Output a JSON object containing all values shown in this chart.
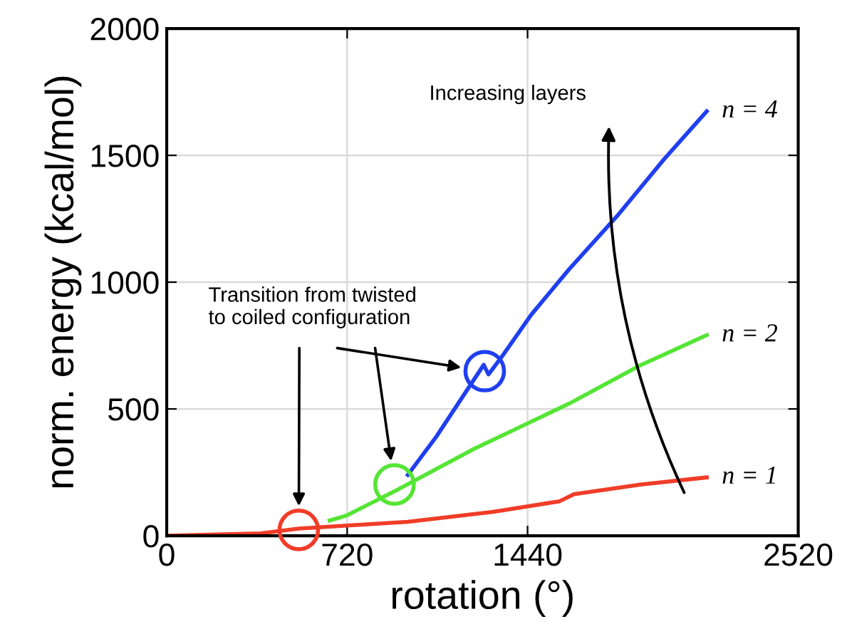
{
  "chart_data": {
    "type": "line",
    "xlabel": "rotation (°)",
    "ylabel": "norm. energy (kcal/mol)",
    "xlim": [
      0,
      2520
    ],
    "xticks": [
      0,
      720,
      1440,
      2520
    ],
    "ylim": [
      0,
      2000
    ],
    "yticks": [
      0,
      500,
      1000,
      1500,
      2000
    ],
    "grid": true,
    "marker": "none",
    "line_style": "solid",
    "series": [
      {
        "name": "n = 1",
        "color": "#f03c28",
        "x": [
          0,
          375,
          527,
          754,
          962,
          1303,
          1568,
          1625,
          1890,
          2155
        ],
        "values": [
          0,
          9,
          28,
          42,
          55,
          94,
          136,
          164,
          202,
          230
        ]
      },
      {
        "name": "n = 4",
        "color": "#1f3ff0",
        "x": [
          962,
          1076,
          1227,
          1265,
          1284,
          1341,
          1455,
          1606,
          1795,
          1985,
          2155
        ],
        "values": [
          240,
          391,
          617,
          674,
          636,
          711,
          872,
          1051,
          1258,
          1485,
          1674
        ]
      },
      {
        "name": "n = 2",
        "color": "#55e535",
        "x": [
          650,
          716,
          924,
          1227,
          1606,
          1890,
          2155
        ],
        "values": [
          60,
          79,
          183,
          343,
          521,
          672,
          791
        ]
      },
      {
        "type": "scatter",
        "marker": "circle",
        "color": "#f03c28",
        "x": [
          527
        ],
        "values": [
          23
        ]
      },
      {
        "type": "scatter",
        "marker": "circle",
        "color": "#55e535",
        "x": [
          909
        ],
        "values": [
          202
        ]
      },
      {
        "type": "scatter",
        "marker": "circle",
        "color": "#1f3ff0",
        "x": [
          1269
        ],
        "values": [
          649
        ]
      }
    ],
    "annotations": [
      "Transition from twisted\nto coiled configuration",
      "Increasing layers"
    ]
  }
}
